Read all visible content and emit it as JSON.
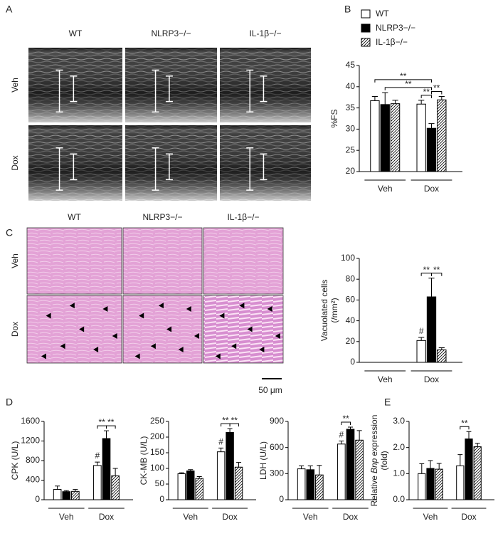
{
  "panel_labels": [
    "A",
    "B",
    "C",
    "D",
    "E"
  ],
  "echo": {
    "columns": [
      "WT",
      "NLRP3−/−",
      "IL-1β−/−"
    ],
    "rows": [
      "Veh",
      "Dox"
    ]
  },
  "histology": {
    "columns": [
      "WT",
      "NLRP3−/−",
      "IL-1β−/−"
    ],
    "rows": [
      "Veh",
      "Dox"
    ],
    "scale_bar": "50 μm"
  },
  "chart_data": [
    {
      "type": "bar",
      "y_label": [
        [
          {
            "text": "%FS"
          }
        ]
      ],
      "categories": [
        "Veh",
        "Dox"
      ],
      "legend": true,
      "series": [
        {
          "name": "WT",
          "color": "#ffffff",
          "values": [
            36.7,
            35.9
          ],
          "errors": [
            1.0,
            0.9
          ]
        },
        {
          "name": "NLRP3−/−",
          "color": "#000000",
          "values": [
            35.8,
            30.2
          ],
          "errors": [
            2.8,
            1.1
          ]
        },
        {
          "name": "IL-1β−/−",
          "color": "#ffffff",
          "hatch": true,
          "values": [
            36.0,
            36.9
          ],
          "errors": [
            0.8,
            0.8
          ]
        }
      ],
      "ylim": [
        20,
        45
      ],
      "yticks": [
        20,
        25,
        30,
        35,
        40,
        45
      ],
      "significance": [
        {
          "label": "**",
          "bars": [
            [
              1,
              0
            ],
            [
              1,
              1
            ]
          ]
        },
        {
          "label": "**",
          "bars": [
            [
              1,
              1
            ],
            [
              1,
              2
            ]
          ]
        },
        {
          "label": "**",
          "bars": [
            [
              0,
              1
            ],
            [
              1,
              1
            ]
          ]
        },
        {
          "label": "**",
          "bars": [
            [
              0,
              0
            ],
            [
              1,
              1
            ]
          ]
        }
      ],
      "markers": []
    },
    {
      "type": "bar",
      "y_label": [
        [
          {
            "text": "Vacuolated cells"
          }
        ],
        [
          {
            "text": "(/mm²)"
          }
        ]
      ],
      "categories": [
        "Veh",
        "Dox"
      ],
      "series": [
        {
          "name": "WT",
          "color": "#ffffff",
          "values": [
            0,
            21
          ],
          "errors": [
            0,
            3
          ]
        },
        {
          "name": "NLRP3−/−",
          "color": "#000000",
          "values": [
            0,
            63
          ],
          "errors": [
            0,
            18
          ]
        },
        {
          "name": "IL-1β−/−",
          "color": "#ffffff",
          "hatch": true,
          "values": [
            0,
            12
          ],
          "errors": [
            0,
            2
          ]
        }
      ],
      "ylim": [
        0,
        100
      ],
      "yticks": [
        0,
        20,
        40,
        60,
        80,
        100
      ],
      "significance": [
        {
          "label": "**",
          "bars": [
            [
              1,
              0
            ],
            [
              1,
              1
            ]
          ]
        },
        {
          "label": "**",
          "bars": [
            [
              1,
              1
            ],
            [
              1,
              2
            ]
          ]
        }
      ],
      "markers": [
        {
          "label": "#",
          "bar": [
            1,
            0
          ]
        }
      ]
    },
    {
      "type": "bar",
      "y_label": [
        [
          {
            "text": "CPK (U/L)"
          }
        ]
      ],
      "categories": [
        "Veh",
        "Dox"
      ],
      "series": [
        {
          "name": "WT",
          "color": "#ffffff",
          "values": [
            210,
            700
          ],
          "errors": [
            70,
            70
          ]
        },
        {
          "name": "NLRP3−/−",
          "color": "#000000",
          "values": [
            165,
            1250
          ],
          "errors": [
            20,
            160
          ]
        },
        {
          "name": "IL-1β−/−",
          "color": "#ffffff",
          "hatch": true,
          "values": [
            170,
            490
          ],
          "errors": [
            40,
            150
          ]
        }
      ],
      "ylim": [
        0,
        1600
      ],
      "yticks": [
        0,
        400,
        800,
        1200,
        1600
      ],
      "significance": [
        {
          "label": "**",
          "bars": [
            [
              1,
              0
            ],
            [
              1,
              1
            ]
          ]
        },
        {
          "label": "**",
          "bars": [
            [
              1,
              1
            ],
            [
              1,
              2
            ]
          ]
        }
      ],
      "markers": [
        {
          "label": "#",
          "bar": [
            1,
            0
          ]
        }
      ]
    },
    {
      "type": "bar",
      "y_label": [
        [
          {
            "text": "CK-MB (U/L)"
          }
        ]
      ],
      "categories": [
        "Veh",
        "Dox"
      ],
      "series": [
        {
          "name": "WT",
          "color": "#ffffff",
          "values": [
            83,
            153
          ],
          "errors": [
            3,
            12
          ]
        },
        {
          "name": "NLRP3−/−",
          "color": "#000000",
          "values": [
            92,
            215
          ],
          "errors": [
            4,
            12
          ]
        },
        {
          "name": "IL-1β−/−",
          "color": "#ffffff",
          "hatch": true,
          "values": [
            68,
            104
          ],
          "errors": [
            6,
            15
          ]
        }
      ],
      "ylim": [
        0,
        250
      ],
      "yticks": [
        0,
        50,
        100,
        150,
        200,
        250
      ],
      "significance": [
        {
          "label": "**",
          "bars": [
            [
              1,
              0
            ],
            [
              1,
              1
            ]
          ]
        },
        {
          "label": "**",
          "bars": [
            [
              1,
              1
            ],
            [
              1,
              2
            ]
          ]
        }
      ],
      "markers": [
        {
          "label": "#",
          "bar": [
            1,
            0
          ]
        }
      ]
    },
    {
      "type": "bar",
      "y_label": [
        [
          {
            "text": "LDH (U/L)"
          }
        ]
      ],
      "categories": [
        "Veh",
        "Dox"
      ],
      "series": [
        {
          "name": "WT",
          "color": "#ffffff",
          "values": [
            355,
            640
          ],
          "errors": [
            35,
            35
          ]
        },
        {
          "name": "NLRP3−/−",
          "color": "#000000",
          "values": [
            345,
            810
          ],
          "errors": [
            45,
            25
          ]
        },
        {
          "name": "IL-1β−/−",
          "color": "#ffffff",
          "hatch": true,
          "values": [
            285,
            685
          ],
          "errors": [
            110,
            110
          ]
        }
      ],
      "ylim": [
        0,
        900
      ],
      "yticks": [
        0,
        300,
        600,
        900
      ],
      "significance": [
        {
          "label": "**",
          "bars": [
            [
              1,
              0
            ],
            [
              1,
              1
            ]
          ]
        }
      ],
      "markers": [
        {
          "label": "#",
          "bar": [
            1,
            0
          ]
        }
      ]
    },
    {
      "type": "bar",
      "y_label": [
        [
          {
            "text": "Relative"
          },
          {
            "text": "Bnp",
            "italic": true
          },
          {
            "text": "expression"
          }
        ],
        [
          {
            "text": "(fold)"
          }
        ]
      ],
      "categories": [
        "Veh",
        "Dox"
      ],
      "series": [
        {
          "name": "WT",
          "color": "#ffffff",
          "values": [
            1.0,
            1.3
          ],
          "errors": [
            0.38,
            0.43
          ]
        },
        {
          "name": "NLRP3−/−",
          "color": "#000000",
          "values": [
            1.2,
            2.33
          ],
          "errors": [
            0.3,
            0.28
          ]
        },
        {
          "name": "IL-1β−/−",
          "color": "#ffffff",
          "hatch": true,
          "values": [
            1.17,
            2.03
          ],
          "errors": [
            0.22,
            0.13
          ]
        }
      ],
      "ylim": [
        0,
        3
      ],
      "yticks": [
        {
          "value": 0,
          "label": "0.0"
        },
        {
          "value": 1,
          "label": "1.0"
        },
        {
          "value": 2,
          "label": "2.0"
        },
        {
          "value": 3,
          "label": "3.0"
        }
      ],
      "significance": [
        {
          "label": "**",
          "bars": [
            [
              1,
              0
            ],
            [
              1,
              1
            ]
          ]
        }
      ],
      "markers": []
    }
  ]
}
